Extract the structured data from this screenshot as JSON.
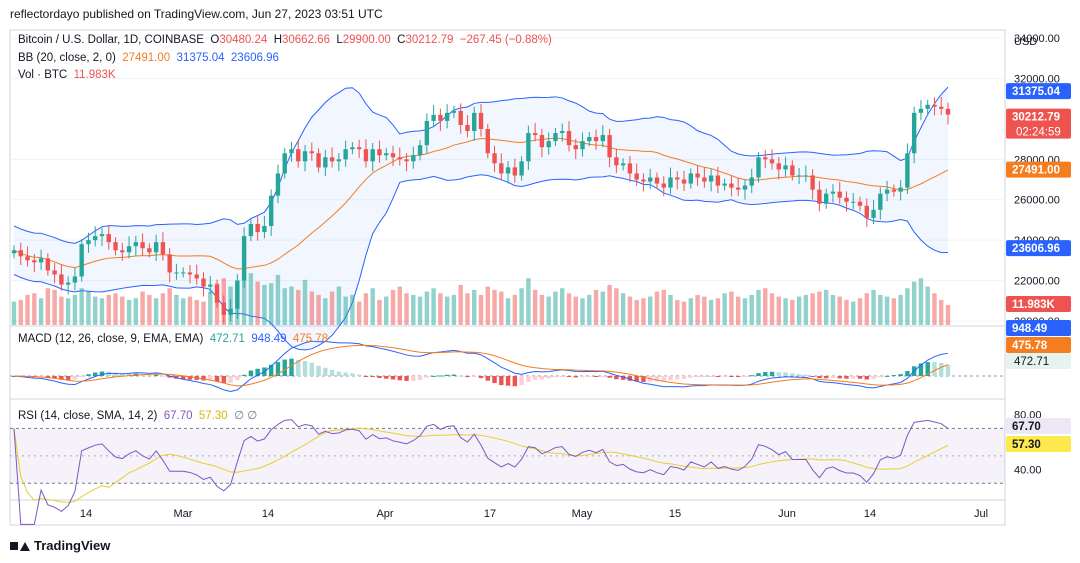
{
  "publisher_line": "reflectordayo published on TradingView.com, Jun 27, 2023 03:51 UTC",
  "footer_brand": "TradingView",
  "legend": {
    "symbol": "Bitcoin / U.S. Dollar, 1D, COINBASE",
    "o_label": "O",
    "o_value": "30480.24",
    "h_label": "H",
    "h_value": "30662.66",
    "l_label": "L",
    "l_value": "29900.00",
    "c_label": "C",
    "c_value": "30212.79",
    "change": "−267.45 (−0.88%)",
    "bb_label": "BB (20, close, 2, 0)",
    "bb_basis": "27491.00",
    "bb_upper": "31375.04",
    "bb_lower": "23606.96",
    "vol_label": "Vol · BTC",
    "vol_value": "11.983K",
    "macd_label": "MACD (12, 26, close, 9, EMA, EMA)",
    "macd_hist": "472.71",
    "macd_line": "948.49",
    "macd_signal": "475.78",
    "rsi_label": "RSI (14, close, SMA, 14, 2)",
    "rsi_value": "67.70",
    "rsi_sma": "57.30",
    "rsi_extra": "∅ ∅"
  },
  "chart_data": {
    "type": "candlestick",
    "title": "Bitcoin / U.S. Dollar, 1D, COINBASE",
    "currency": "USD",
    "price_axis": {
      "ticks": [
        "34000.00",
        "32000.00",
        "28000.00",
        "26000.00",
        "24000.00",
        "22000.00",
        "20000.00"
      ],
      "ylim": [
        19800,
        34400
      ]
    },
    "x_tick_labels": [
      "14",
      "Mar",
      "14",
      "Apr",
      "17",
      "May",
      "15",
      "Jun",
      "14",
      "Jul"
    ],
    "close": [
      23500,
      23200,
      23000,
      22900,
      23100,
      22500,
      22300,
      21800,
      21900,
      22200,
      23800,
      24000,
      24200,
      24300,
      23900,
      23500,
      23400,
      23700,
      23900,
      23600,
      23400,
      23900,
      23300,
      22400,
      22400,
      22400,
      22300,
      22100,
      21700,
      21800,
      20900,
      20300,
      20600,
      22000,
      24200,
      24800,
      24400,
      24700,
      26200,
      27300,
      28300,
      28500,
      27900,
      28400,
      28300,
      27600,
      28100,
      27900,
      28000,
      28500,
      28600,
      28500,
      27900,
      28500,
      28200,
      28300,
      28100,
      28000,
      27900,
      28200,
      28700,
      29900,
      30200,
      29900,
      30300,
      30400,
      29700,
      29400,
      30300,
      29500,
      28300,
      27800,
      27300,
      27600,
      27200,
      27900,
      29300,
      29200,
      28600,
      28900,
      29300,
      29400,
      28700,
      28500,
      28900,
      29100,
      28900,
      29200,
      28100,
      27700,
      27800,
      27300,
      27000,
      26900,
      27100,
      26800,
      26600,
      27100,
      27000,
      26800,
      27300,
      27100,
      26900,
      27200,
      26700,
      26800,
      26600,
      26500,
      26700,
      27100,
      28100,
      28000,
      27800,
      27500,
      27700,
      27200,
      27200,
      27200,
      26500,
      25800,
      26300,
      26400,
      26100,
      25900,
      25900,
      25700,
      25100,
      25500,
      26300,
      26500,
      26400,
      26600,
      28300,
      30300,
      30500,
      30700,
      30600,
      30500,
      30212.79
    ],
    "volume_k": [
      14,
      15,
      18,
      19,
      16,
      22,
      21,
      17,
      16,
      18,
      22,
      20,
      17,
      16,
      18,
      19,
      17,
      15,
      16,
      20,
      18,
      16,
      19,
      22,
      18,
      16,
      17,
      15,
      14,
      20,
      25,
      28,
      23,
      24,
      28,
      31,
      26,
      24,
      25,
      30,
      22,
      23,
      21,
      27,
      20,
      18,
      16,
      20,
      23,
      17,
      18,
      14,
      19,
      22,
      15,
      17,
      21,
      23,
      19,
      18,
      17,
      20,
      22,
      19,
      17,
      18,
      24,
      19,
      21,
      18,
      23,
      21,
      20,
      16,
      18,
      22,
      28,
      21,
      18,
      17,
      20,
      22,
      19,
      17,
      16,
      18,
      21,
      20,
      24,
      22,
      19,
      17,
      15,
      16,
      17,
      20,
      21,
      18,
      15,
      14,
      16,
      18,
      17,
      15,
      16,
      19,
      20,
      17,
      16,
      18,
      21,
      22,
      19,
      17,
      16,
      15,
      17,
      18,
      19,
      20,
      21,
      18,
      17,
      15,
      14,
      16,
      19,
      21,
      18,
      17,
      16,
      18,
      22,
      26,
      28,
      23,
      19,
      15,
      12
    ],
    "bb_upper_end": 31375.04,
    "bb_basis_end": 27491.0,
    "bb_lower_end": 23606.96,
    "macd_axis": {
      "ticks": [
        "948.49",
        "475.78",
        "472.71"
      ]
    },
    "rsi_axis": {
      "ticks": [
        "80.00",
        "40.00"
      ],
      "ylim": [
        20,
        90
      ],
      "bands": [
        70,
        30
      ]
    }
  },
  "colors": {
    "up": "#26a69a",
    "down": "#ef5350",
    "bb_band": "#2962ff",
    "bb_basis": "#f57c1f",
    "macd": "#2962ff",
    "signal": "#f57c1f",
    "rsi": "#7e57c2",
    "rsi_sma": "#e8cf2f"
  }
}
